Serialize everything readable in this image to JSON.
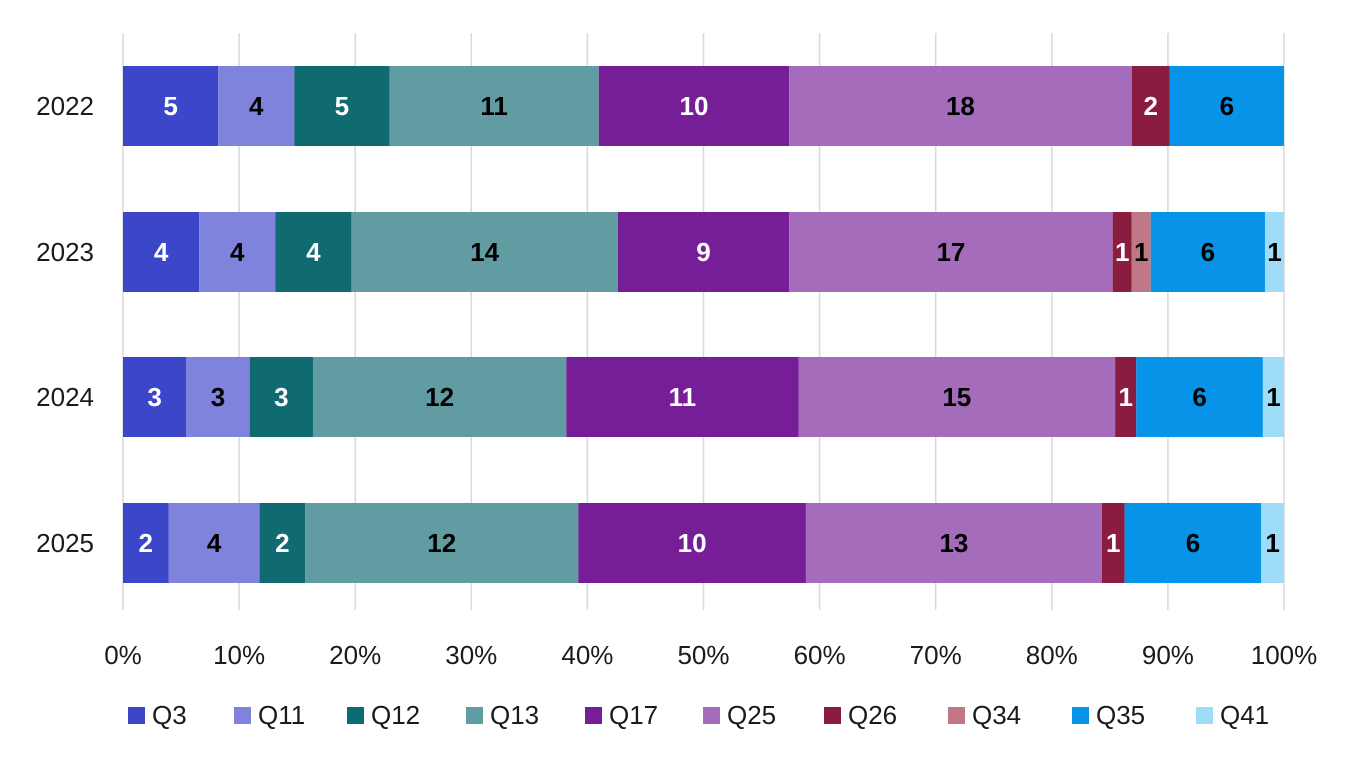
{
  "chart_data": {
    "type": "bar",
    "orientation": "horizontal",
    "stacked": "percent",
    "title": "",
    "xlabel": "",
    "ylabel": "",
    "xlim": [
      0,
      100
    ],
    "x_ticks": [
      "0%",
      "10%",
      "20%",
      "30%",
      "40%",
      "50%",
      "60%",
      "70%",
      "80%",
      "90%",
      "100%"
    ],
    "grid": "vertical",
    "legend_position": "bottom",
    "categories": [
      "2022",
      "2023",
      "2024",
      "2025"
    ],
    "series": [
      {
        "name": "Q3",
        "color": "#3b46c9",
        "label_color": "#ffffff",
        "values": [
          5,
          4,
          3,
          2
        ]
      },
      {
        "name": "Q11",
        "color": "#7f83db",
        "label_color": "#000000",
        "values": [
          4,
          4,
          3,
          4
        ]
      },
      {
        "name": "Q12",
        "color": "#106a72",
        "label_color": "#ffffff",
        "values": [
          5,
          4,
          3,
          2
        ]
      },
      {
        "name": "Q13",
        "color": "#629ca3",
        "label_color": "#000000",
        "values": [
          11,
          14,
          12,
          12
        ]
      },
      {
        "name": "Q17",
        "color": "#761e98",
        "label_color": "#ffffff",
        "values": [
          10,
          9,
          11,
          10
        ]
      },
      {
        "name": "Q25",
        "color": "#a46cba",
        "label_color": "#000000",
        "values": [
          18,
          17,
          15,
          13
        ]
      },
      {
        "name": "Q26",
        "color": "#8a1c40",
        "label_color": "#ffffff",
        "values": [
          2,
          1,
          1,
          1
        ]
      },
      {
        "name": "Q34",
        "color": "#c07887",
        "label_color": "#000000",
        "values": [
          0,
          1,
          0,
          0
        ]
      },
      {
        "name": "Q35",
        "color": "#0793e8",
        "label_color": "#000000",
        "values": [
          6,
          6,
          6,
          6
        ]
      },
      {
        "name": "Q41",
        "color": "#9fdcf8",
        "label_color": "#000000",
        "values": [
          0,
          1,
          1,
          1
        ]
      }
    ]
  }
}
